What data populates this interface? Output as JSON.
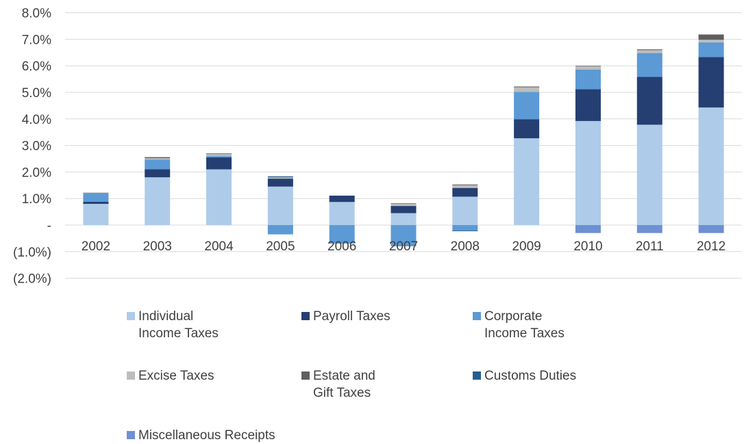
{
  "chart_data": {
    "type": "bar",
    "stacked": true,
    "categories": [
      "2002",
      "2003",
      "2004",
      "2005",
      "2006",
      "2007",
      "2008",
      "2009",
      "2010",
      "2011",
      "2012"
    ],
    "ylim": [
      -2.0,
      8.0
    ],
    "y_ticks": [
      {
        "value": 8,
        "label": "8.0%"
      },
      {
        "value": 7,
        "label": "7.0%"
      },
      {
        "value": 6,
        "label": "6.0%"
      },
      {
        "value": 5,
        "label": "5.0%"
      },
      {
        "value": 4,
        "label": "4.0%"
      },
      {
        "value": 3,
        "label": "3.0%"
      },
      {
        "value": 2,
        "label": "2.0%"
      },
      {
        "value": 1,
        "label": "1.0%"
      },
      {
        "value": 0,
        "label": "-"
      },
      {
        "value": -1,
        "label": "(1.0%)"
      },
      {
        "value": -2,
        "label": "(2.0%)"
      }
    ],
    "grid": true,
    "legend_position": "bottom",
    "series": [
      {
        "name": "Individual Income Taxes",
        "label": "Individual\nIncome Taxes",
        "color": "#aecbe9",
        "values": [
          0.8,
          1.8,
          2.1,
          1.45,
          0.87,
          0.45,
          1.07,
          3.27,
          3.92,
          3.78,
          4.43
        ]
      },
      {
        "name": "Payroll Taxes",
        "label": "Payroll Taxes",
        "color": "#253f72",
        "values": [
          0.08,
          0.3,
          0.45,
          0.3,
          0.24,
          0.27,
          0.33,
          0.72,
          1.2,
          1.8,
          1.9
        ]
      },
      {
        "name": "Corporate Income Taxes",
        "label": "Corporate\nIncome Taxes",
        "color": "#5b9ad5",
        "values": [
          0.33,
          0.37,
          0.05,
          -0.35,
          -0.7,
          -0.8,
          -0.2,
          1.03,
          0.74,
          0.9,
          0.55
        ]
      },
      {
        "name": "Excise Taxes",
        "label": "Excise Taxes",
        "color": "#bdbdbd",
        "values": [
          0.02,
          0.05,
          0.08,
          0.05,
          0.0,
          0.08,
          0.1,
          0.17,
          0.12,
          0.11,
          0.1
        ]
      },
      {
        "name": "Estate and Gift Taxes",
        "label": "Estate and\nGift Taxes",
        "color": "#5f5f5f",
        "values": [
          0.0,
          0.03,
          0.01,
          0.01,
          0.0,
          0.02,
          0.03,
          0.03,
          0.02,
          0.03,
          0.2
        ]
      },
      {
        "name": "Customs Duties",
        "label": "Customs Duties",
        "color": "#255e91",
        "values": [
          0.0,
          0.01,
          0.01,
          0.03,
          0.0,
          0.0,
          -0.03,
          0.0,
          0.0,
          0.0,
          0.0
        ]
      },
      {
        "name": "Miscellaneous Receipts",
        "label": "Miscellaneous Receipts",
        "color": "#6f8fd4",
        "values": [
          0.0,
          0.0,
          0.0,
          0.0,
          0.0,
          0.0,
          0.0,
          0.0,
          -0.3,
          -0.3,
          -0.3
        ]
      }
    ]
  }
}
